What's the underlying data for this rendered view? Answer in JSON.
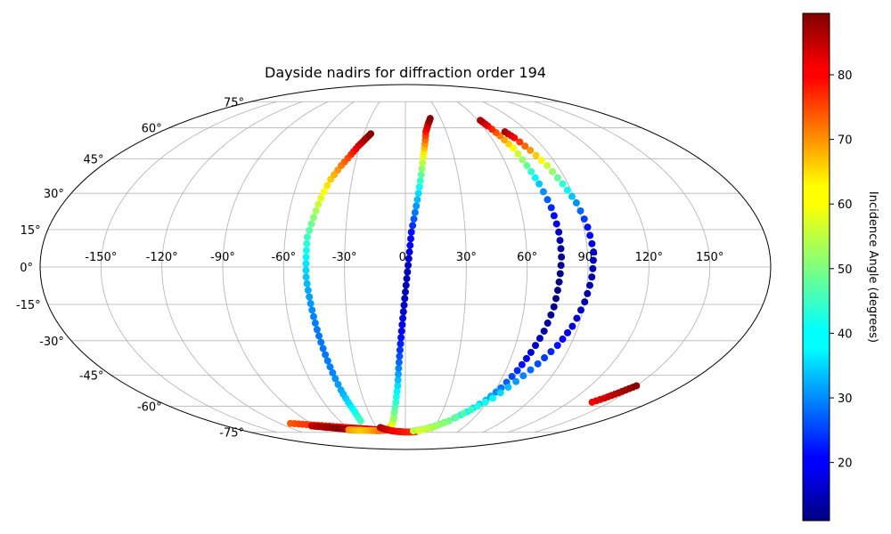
{
  "chart_data": {
    "type": "scatter",
    "projection": "mollweide",
    "title": "Dayside nadirs for diffraction order 194",
    "lon_ticks": [
      -150,
      -120,
      -90,
      -60,
      -30,
      0,
      30,
      60,
      90,
      120,
      150
    ],
    "lat_ticks": [
      -75,
      -60,
      -45,
      -30,
      -15,
      0,
      15,
      30,
      45,
      60,
      75
    ],
    "lon_tick_labels": [
      "-150°",
      "-120°",
      "-90°",
      "-60°",
      "-30°",
      "0°",
      "30°",
      "60°",
      "90°",
      "120°",
      "150°"
    ],
    "lat_tick_labels": [
      "-75°",
      "-60°",
      "-45°",
      "-30°",
      "-15°",
      "0°",
      "15°",
      "30°",
      "45°",
      "60°",
      "75°"
    ],
    "grid": true,
    "colorbar": {
      "label": "Incidence Angle (degrees)",
      "colormap": "jet",
      "range": [
        11,
        89.5
      ],
      "ticks": [
        20,
        30,
        40,
        50,
        60,
        70,
        80
      ],
      "tick_labels": [
        "20",
        "30",
        "40",
        "50",
        "60",
        "70",
        "80"
      ],
      "placement": "right"
    },
    "tracks": [
      {
        "points": [
          [
            -110,
            -69.5,
            73
          ],
          [
            -100,
            -70,
            75
          ],
          [
            -90,
            -70.5,
            76
          ],
          [
            -80,
            -71,
            78
          ],
          [
            -70,
            -71.5,
            79
          ],
          [
            -62,
            -72,
            80
          ],
          [
            -55,
            -72.3,
            82
          ],
          [
            -49,
            -72.5,
            82
          ],
          [
            -43,
            -72.8,
            83
          ],
          [
            -37,
            -73.1,
            84
          ],
          [
            -31,
            -73.4,
            84
          ]
        ]
      },
      {
        "points": [
          [
            -94,
            -71,
            84
          ],
          [
            -88,
            -71.4,
            86
          ],
          [
            -82,
            -71.8,
            87
          ],
          [
            -76,
            -72.2,
            88
          ],
          [
            -70,
            -72.5,
            89
          ],
          [
            -65,
            -72.8,
            87
          ],
          [
            -60,
            -73,
            85
          ]
        ]
      },
      {
        "points": [
          [
            -62,
            -73.5,
            68
          ],
          [
            -56,
            -73.6,
            66
          ],
          [
            -48,
            -73.7,
            64
          ],
          [
            -38,
            -73.9,
            67
          ],
          [
            -30,
            -74,
            70
          ],
          [
            -22,
            -73.7,
            72
          ],
          [
            -16,
            -72,
            66
          ],
          [
            -12,
            -69,
            58
          ],
          [
            -10,
            -66,
            52
          ],
          [
            -7,
            -58,
            44
          ],
          [
            -5,
            -50,
            38
          ],
          [
            -4,
            -42,
            31
          ],
          [
            -3,
            -34,
            25
          ],
          [
            -2,
            -26,
            20
          ],
          [
            -1,
            -18,
            17
          ],
          [
            0,
            -10,
            15
          ],
          [
            1,
            -2,
            15
          ],
          [
            2,
            6,
            18
          ],
          [
            3,
            14,
            22
          ],
          [
            5,
            22,
            30
          ],
          [
            7,
            30,
            38
          ],
          [
            9,
            38,
            48
          ],
          [
            11,
            46,
            58
          ],
          [
            13,
            52,
            68
          ],
          [
            15,
            58,
            78
          ],
          [
            18,
            62,
            84
          ],
          [
            21,
            65,
            89
          ]
        ]
      },
      {
        "points": [
          [
            -26,
            -72,
            86
          ],
          [
            -22,
            -73,
            84
          ],
          [
            -17,
            -73.8,
            82
          ],
          [
            -12,
            -74.3,
            80
          ],
          [
            -6,
            -74.6,
            79
          ],
          [
            0,
            -74.8,
            78
          ],
          [
            6,
            -74.8,
            77
          ],
          [
            12,
            -74.6,
            76
          ]
        ]
      },
      {
        "points": [
          [
            -41,
            -68,
            46
          ],
          [
            -41,
            -63,
            42
          ],
          [
            -42,
            -58,
            38
          ],
          [
            -43,
            -52,
            34
          ],
          [
            -44,
            -44,
            31
          ],
          [
            -45,
            -36,
            30
          ],
          [
            -46,
            -28,
            30
          ],
          [
            -47,
            -20,
            31
          ],
          [
            -48,
            -12,
            33
          ],
          [
            -49,
            -4,
            36
          ],
          [
            -49,
            4,
            40
          ],
          [
            -49,
            12,
            45
          ],
          [
            -47,
            20,
            51
          ],
          [
            -45,
            28,
            58
          ],
          [
            -42,
            36,
            64
          ],
          [
            -38,
            42,
            70
          ],
          [
            -34,
            47,
            76
          ],
          [
            -31,
            51,
            82
          ],
          [
            -28,
            54,
            86
          ],
          [
            -25,
            57,
            89
          ]
        ]
      },
      {
        "points": [
          [
            9,
            -74,
            55
          ],
          [
            20,
            -73,
            51
          ],
          [
            30,
            -71,
            48
          ],
          [
            40,
            -68,
            44
          ],
          [
            50,
            -63,
            40
          ],
          [
            58,
            -57,
            35
          ],
          [
            63,
            -51,
            30
          ],
          [
            67,
            -43,
            24
          ],
          [
            70,
            -35,
            18
          ],
          [
            73,
            -26,
            14
          ],
          [
            75,
            -16,
            12
          ],
          [
            76,
            -6,
            11
          ],
          [
            77,
            4,
            12
          ],
          [
            77,
            14,
            16
          ],
          [
            76,
            24,
            24
          ],
          [
            74,
            34,
            36
          ],
          [
            72,
            42,
            48
          ],
          [
            70,
            50,
            60
          ],
          [
            67,
            56,
            70
          ],
          [
            64,
            61,
            80
          ],
          [
            62,
            64,
            86
          ]
        ]
      },
      {
        "points": [
          [
            15,
            -74,
            57
          ],
          [
            28,
            -72,
            54
          ],
          [
            40,
            -68,
            50
          ],
          [
            52,
            -62,
            45
          ],
          [
            62,
            -56,
            40
          ],
          [
            70,
            -48,
            33
          ],
          [
            77,
            -40,
            27
          ],
          [
            83,
            -32,
            22
          ],
          [
            87,
            -24,
            18
          ],
          [
            90,
            -14,
            15
          ],
          [
            92,
            -4,
            14
          ],
          [
            93,
            6,
            16
          ],
          [
            92,
            16,
            22
          ],
          [
            90,
            26,
            32
          ],
          [
            87,
            34,
            44
          ],
          [
            84,
            42,
            56
          ],
          [
            80,
            49,
            68
          ],
          [
            76,
            55,
            79
          ],
          [
            73,
            58,
            86
          ]
        ]
      },
      {
        "points": [
          [
            137,
            -58,
            80
          ],
          [
            141,
            -56,
            83
          ],
          [
            144,
            -54,
            85
          ],
          [
            147,
            -52,
            87
          ],
          [
            150,
            -50,
            89
          ]
        ]
      }
    ]
  }
}
